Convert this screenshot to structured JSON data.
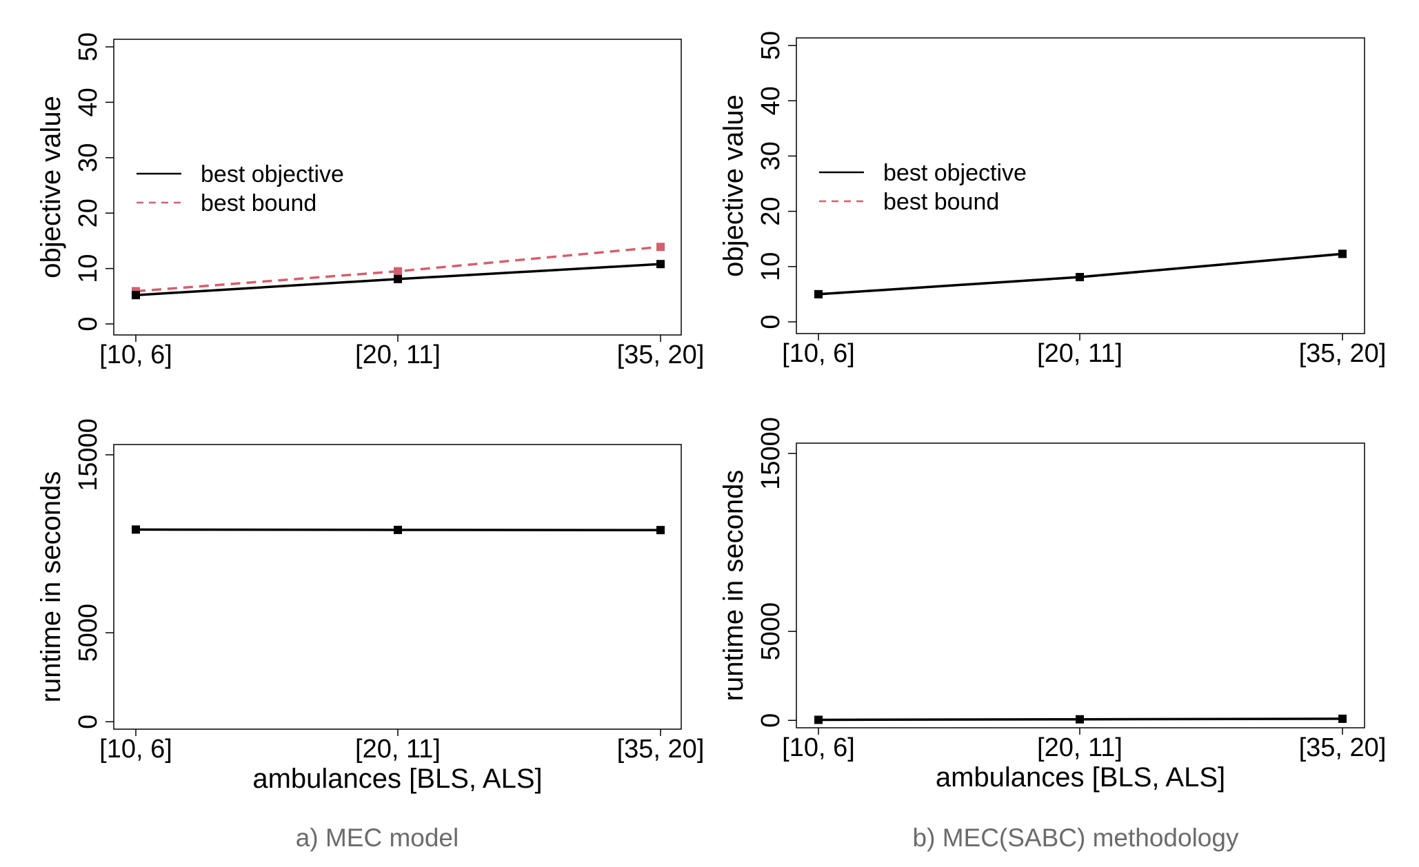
{
  "chart_data": [
    {
      "type": "line",
      "categories": [
        "[10, 6]",
        "[20, 11]",
        "[35, 20]"
      ],
      "ylabel": "objective value",
      "xlabel": "",
      "ylim": [
        0,
        50
      ],
      "yticks": [
        "0",
        "10",
        "20",
        "30",
        "40",
        "50"
      ],
      "grid": false,
      "legend_position": "left",
      "series": [
        {
          "name": "best objective",
          "values": [
            5.2,
            8.1,
            10.8
          ],
          "color": "#000000",
          "style": "solid"
        },
        {
          "name": "best bound",
          "values": [
            5.9,
            9.5,
            13.9
          ],
          "color": "#d45f6e",
          "style": "dashed"
        }
      ]
    },
    {
      "type": "line",
      "categories": [
        "[10, 6]",
        "[20, 11]",
        "[35, 20]"
      ],
      "ylabel": "objective value",
      "xlabel": "",
      "ylim": [
        0,
        50
      ],
      "yticks": [
        "0",
        "10",
        "20",
        "30",
        "40",
        "50"
      ],
      "grid": false,
      "legend_position": "left",
      "series": [
        {
          "name": "best objective",
          "values": [
            5.0,
            8.1,
            12.3
          ],
          "color": "#000000",
          "style": "solid"
        },
        {
          "name": "best bound",
          "values": [
            5.0,
            8.1,
            12.3
          ],
          "color": "#d45f6e",
          "style": "dashed"
        }
      ]
    },
    {
      "type": "line",
      "categories": [
        "[10, 6]",
        "[20, 11]",
        "[35, 20]"
      ],
      "ylabel": "runtime in seconds",
      "xlabel": "ambulances [BLS, ALS]",
      "ylim": [
        -300,
        15500
      ],
      "yticks": [
        "0",
        "5000",
        "15000"
      ],
      "grid": false,
      "series": [
        {
          "values": [
            10800,
            10780,
            10770
          ],
          "color": "#000000",
          "style": "solid"
        }
      ]
    },
    {
      "type": "line",
      "categories": [
        "[10, 6]",
        "[20, 11]",
        "[35, 20]"
      ],
      "ylabel": "runtime in seconds",
      "xlabel": "ambulances [BLS, ALS]",
      "ylim": [
        -300,
        15500
      ],
      "yticks": [
        "0",
        "5000",
        "15000"
      ],
      "grid": false,
      "series": [
        {
          "values": [
            30,
            60,
            90
          ],
          "color": "#000000",
          "style": "solid"
        }
      ]
    }
  ],
  "captions": [
    "a) MEC model",
    "b) MEC(SABC) methodology"
  ],
  "colors": {
    "objective": "#000000",
    "bound": "#d45f6e",
    "caption": "#6b6b6b"
  }
}
